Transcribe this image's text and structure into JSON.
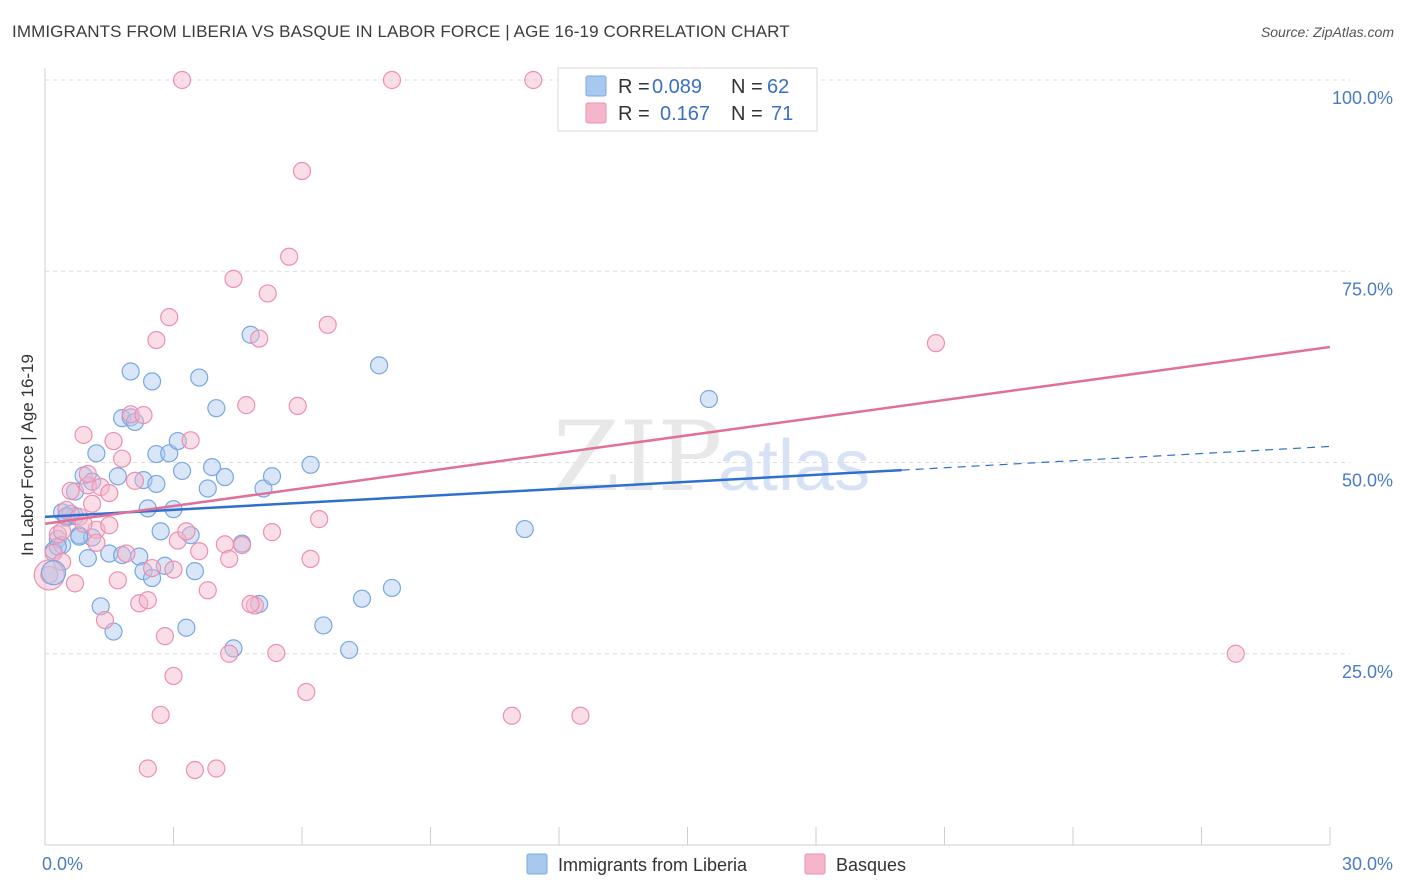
{
  "title": "IMMIGRANTS FROM LIBERIA VS BASQUE IN LABOR FORCE | AGE 16-19 CORRELATION CHART",
  "source": "Source: ZipAtlas.com",
  "watermark": {
    "zip": "ZIP",
    "atlas": "atlas"
  },
  "legend": {
    "rows": [
      {
        "r_label": "R =",
        "r_value": "0.089",
        "n_label": "N =",
        "n_value": "62",
        "color": "#a8c8f0"
      },
      {
        "r_label": "R =",
        "r_value": "0.167",
        "n_label": "N =",
        "n_value": "71",
        "color": "#f5b6ca"
      }
    ]
  },
  "bottom_legend": [
    {
      "label": "Immigrants from Liberia",
      "color": "#a8c8f0"
    },
    {
      "label": "Basques",
      "color": "#f5b6ca"
    }
  ],
  "chart_data": {
    "type": "scatter",
    "title": "IMMIGRANTS FROM LIBERIA VS BASQUE IN LABOR FORCE | AGE 16-19 CORRELATION CHART",
    "xlabel": "",
    "ylabel": "In Labor Force | Age 16-19",
    "xlim": [
      0,
      30
    ],
    "ylim": [
      0,
      100
    ],
    "x_tick_labels": [
      "0.0%",
      "30.0%"
    ],
    "y_tick_labels": [
      "25.0%",
      "50.0%",
      "75.0%",
      "100.0%"
    ],
    "y_ticks": [
      25,
      50,
      75,
      100
    ],
    "grid": true,
    "series": [
      {
        "name": "Immigrants from Liberia",
        "color": "#7aa7e0",
        "fill": "#a8c8f0",
        "trend": {
          "x0": 0,
          "y0": 42.9,
          "x1": 20.0,
          "y1": 49.0,
          "dash_x1": 30.0,
          "dash_y1": 52.1,
          "color": "#2f6fd0"
        },
        "points": [
          [
            0.2,
            38.5
          ],
          [
            0.3,
            40.0
          ],
          [
            0.4,
            39.2
          ],
          [
            0.4,
            43.5
          ],
          [
            0.5,
            42.8
          ],
          [
            0.7,
            46.2
          ],
          [
            0.7,
            43.0
          ],
          [
            0.8,
            40.5
          ],
          [
            0.9,
            48.3
          ],
          [
            1.0,
            37.5
          ],
          [
            1.1,
            40.2
          ],
          [
            1.2,
            51.2
          ],
          [
            1.3,
            31.2
          ],
          [
            1.5,
            38.1
          ],
          [
            1.6,
            27.9
          ],
          [
            1.7,
            48.2
          ],
          [
            1.8,
            55.8
          ],
          [
            1.8,
            37.9
          ],
          [
            2.0,
            55.9
          ],
          [
            2.0,
            61.9
          ],
          [
            2.1,
            55.3
          ],
          [
            2.2,
            37.7
          ],
          [
            2.3,
            35.8
          ],
          [
            2.3,
            47.7
          ],
          [
            2.4,
            44.0
          ],
          [
            2.5,
            60.6
          ],
          [
            2.5,
            34.9
          ],
          [
            2.6,
            47.2
          ],
          [
            2.6,
            51.1
          ],
          [
            2.7,
            41.0
          ],
          [
            2.8,
            36.5
          ],
          [
            2.9,
            51.2
          ],
          [
            3.0,
            43.9
          ],
          [
            3.1,
            52.8
          ],
          [
            3.2,
            48.9
          ],
          [
            3.3,
            28.4
          ],
          [
            3.4,
            40.5
          ],
          [
            3.5,
            35.8
          ],
          [
            3.6,
            61.1
          ],
          [
            3.8,
            46.6
          ],
          [
            3.9,
            49.4
          ],
          [
            4.0,
            57.1
          ],
          [
            4.2,
            48.1
          ],
          [
            4.4,
            25.7
          ],
          [
            4.6,
            39.4
          ],
          [
            4.8,
            66.7
          ],
          [
            5.0,
            31.5
          ],
          [
            5.1,
            46.6
          ],
          [
            5.3,
            48.2
          ],
          [
            6.2,
            49.7
          ],
          [
            6.5,
            28.7
          ],
          [
            7.1,
            25.5
          ],
          [
            7.4,
            32.2
          ],
          [
            7.8,
            62.7
          ],
          [
            8.1,
            33.6
          ],
          [
            11.2,
            41.3
          ],
          [
            15.5,
            58.3
          ],
          [
            0.3,
            39.0
          ],
          [
            0.6,
            43.3
          ],
          [
            0.8,
            40.3
          ],
          [
            1.1,
            47.5
          ],
          [
            0.5,
            43.0
          ]
        ]
      },
      {
        "name": "Basques",
        "color": "#ee8fb0",
        "fill": "#f5b6ca",
        "trend": {
          "x0": 0,
          "y0": 42.0,
          "x1": 30.0,
          "y1": 65.1,
          "color": "#e0709a"
        },
        "points": [
          [
            0.1,
            35.3
          ],
          [
            0.2,
            38.2
          ],
          [
            0.3,
            40.6
          ],
          [
            0.4,
            41.0
          ],
          [
            0.5,
            43.8
          ],
          [
            0.6,
            46.3
          ],
          [
            0.7,
            34.2
          ],
          [
            0.8,
            42.9
          ],
          [
            0.9,
            53.6
          ],
          [
            1.0,
            47.0
          ],
          [
            1.1,
            44.6
          ],
          [
            1.2,
            41.2
          ],
          [
            1.3,
            46.8
          ],
          [
            1.4,
            29.4
          ],
          [
            1.5,
            41.8
          ],
          [
            1.6,
            52.8
          ],
          [
            1.7,
            34.6
          ],
          [
            1.8,
            50.5
          ],
          [
            1.9,
            38.1
          ],
          [
            2.0,
            56.3
          ],
          [
            2.1,
            47.6
          ],
          [
            2.2,
            31.6
          ],
          [
            2.3,
            56.2
          ],
          [
            2.4,
            32.0
          ],
          [
            2.5,
            36.2
          ],
          [
            2.6,
            66.0
          ],
          [
            2.7,
            17.0
          ],
          [
            2.8,
            27.3
          ],
          [
            2.9,
            69.0
          ],
          [
            3.0,
            22.1
          ],
          [
            3.1,
            39.8
          ],
          [
            3.2,
            100.0
          ],
          [
            3.3,
            41.0
          ],
          [
            3.4,
            52.9
          ],
          [
            3.5,
            9.8
          ],
          [
            3.6,
            38.4
          ],
          [
            3.8,
            33.3
          ],
          [
            4.0,
            10.0
          ],
          [
            4.2,
            39.3
          ],
          [
            4.3,
            37.4
          ],
          [
            4.4,
            74.0
          ],
          [
            4.6,
            39.2
          ],
          [
            4.7,
            57.5
          ],
          [
            4.9,
            31.3
          ],
          [
            5.0,
            66.2
          ],
          [
            5.2,
            72.1
          ],
          [
            5.3,
            40.9
          ],
          [
            5.4,
            25.1
          ],
          [
            5.7,
            76.9
          ],
          [
            5.9,
            57.4
          ],
          [
            6.0,
            88.1
          ],
          [
            6.1,
            20.0
          ],
          [
            6.2,
            37.4
          ],
          [
            6.4,
            42.6
          ],
          [
            6.6,
            68.0
          ],
          [
            8.1,
            100.0
          ],
          [
            10.9,
            16.9
          ],
          [
            11.4,
            100.0
          ],
          [
            12.5,
            16.9
          ],
          [
            13.0,
            100.0
          ],
          [
            20.8,
            65.6
          ],
          [
            27.8,
            25.0
          ],
          [
            2.4,
            10.0
          ],
          [
            1.0,
            48.5
          ],
          [
            1.5,
            46.0
          ],
          [
            0.4,
            37.0
          ],
          [
            4.3,
            25.0
          ],
          [
            4.8,
            31.5
          ],
          [
            3.0,
            36.0
          ],
          [
            1.2,
            39.5
          ],
          [
            0.9,
            42.0
          ]
        ]
      }
    ]
  }
}
